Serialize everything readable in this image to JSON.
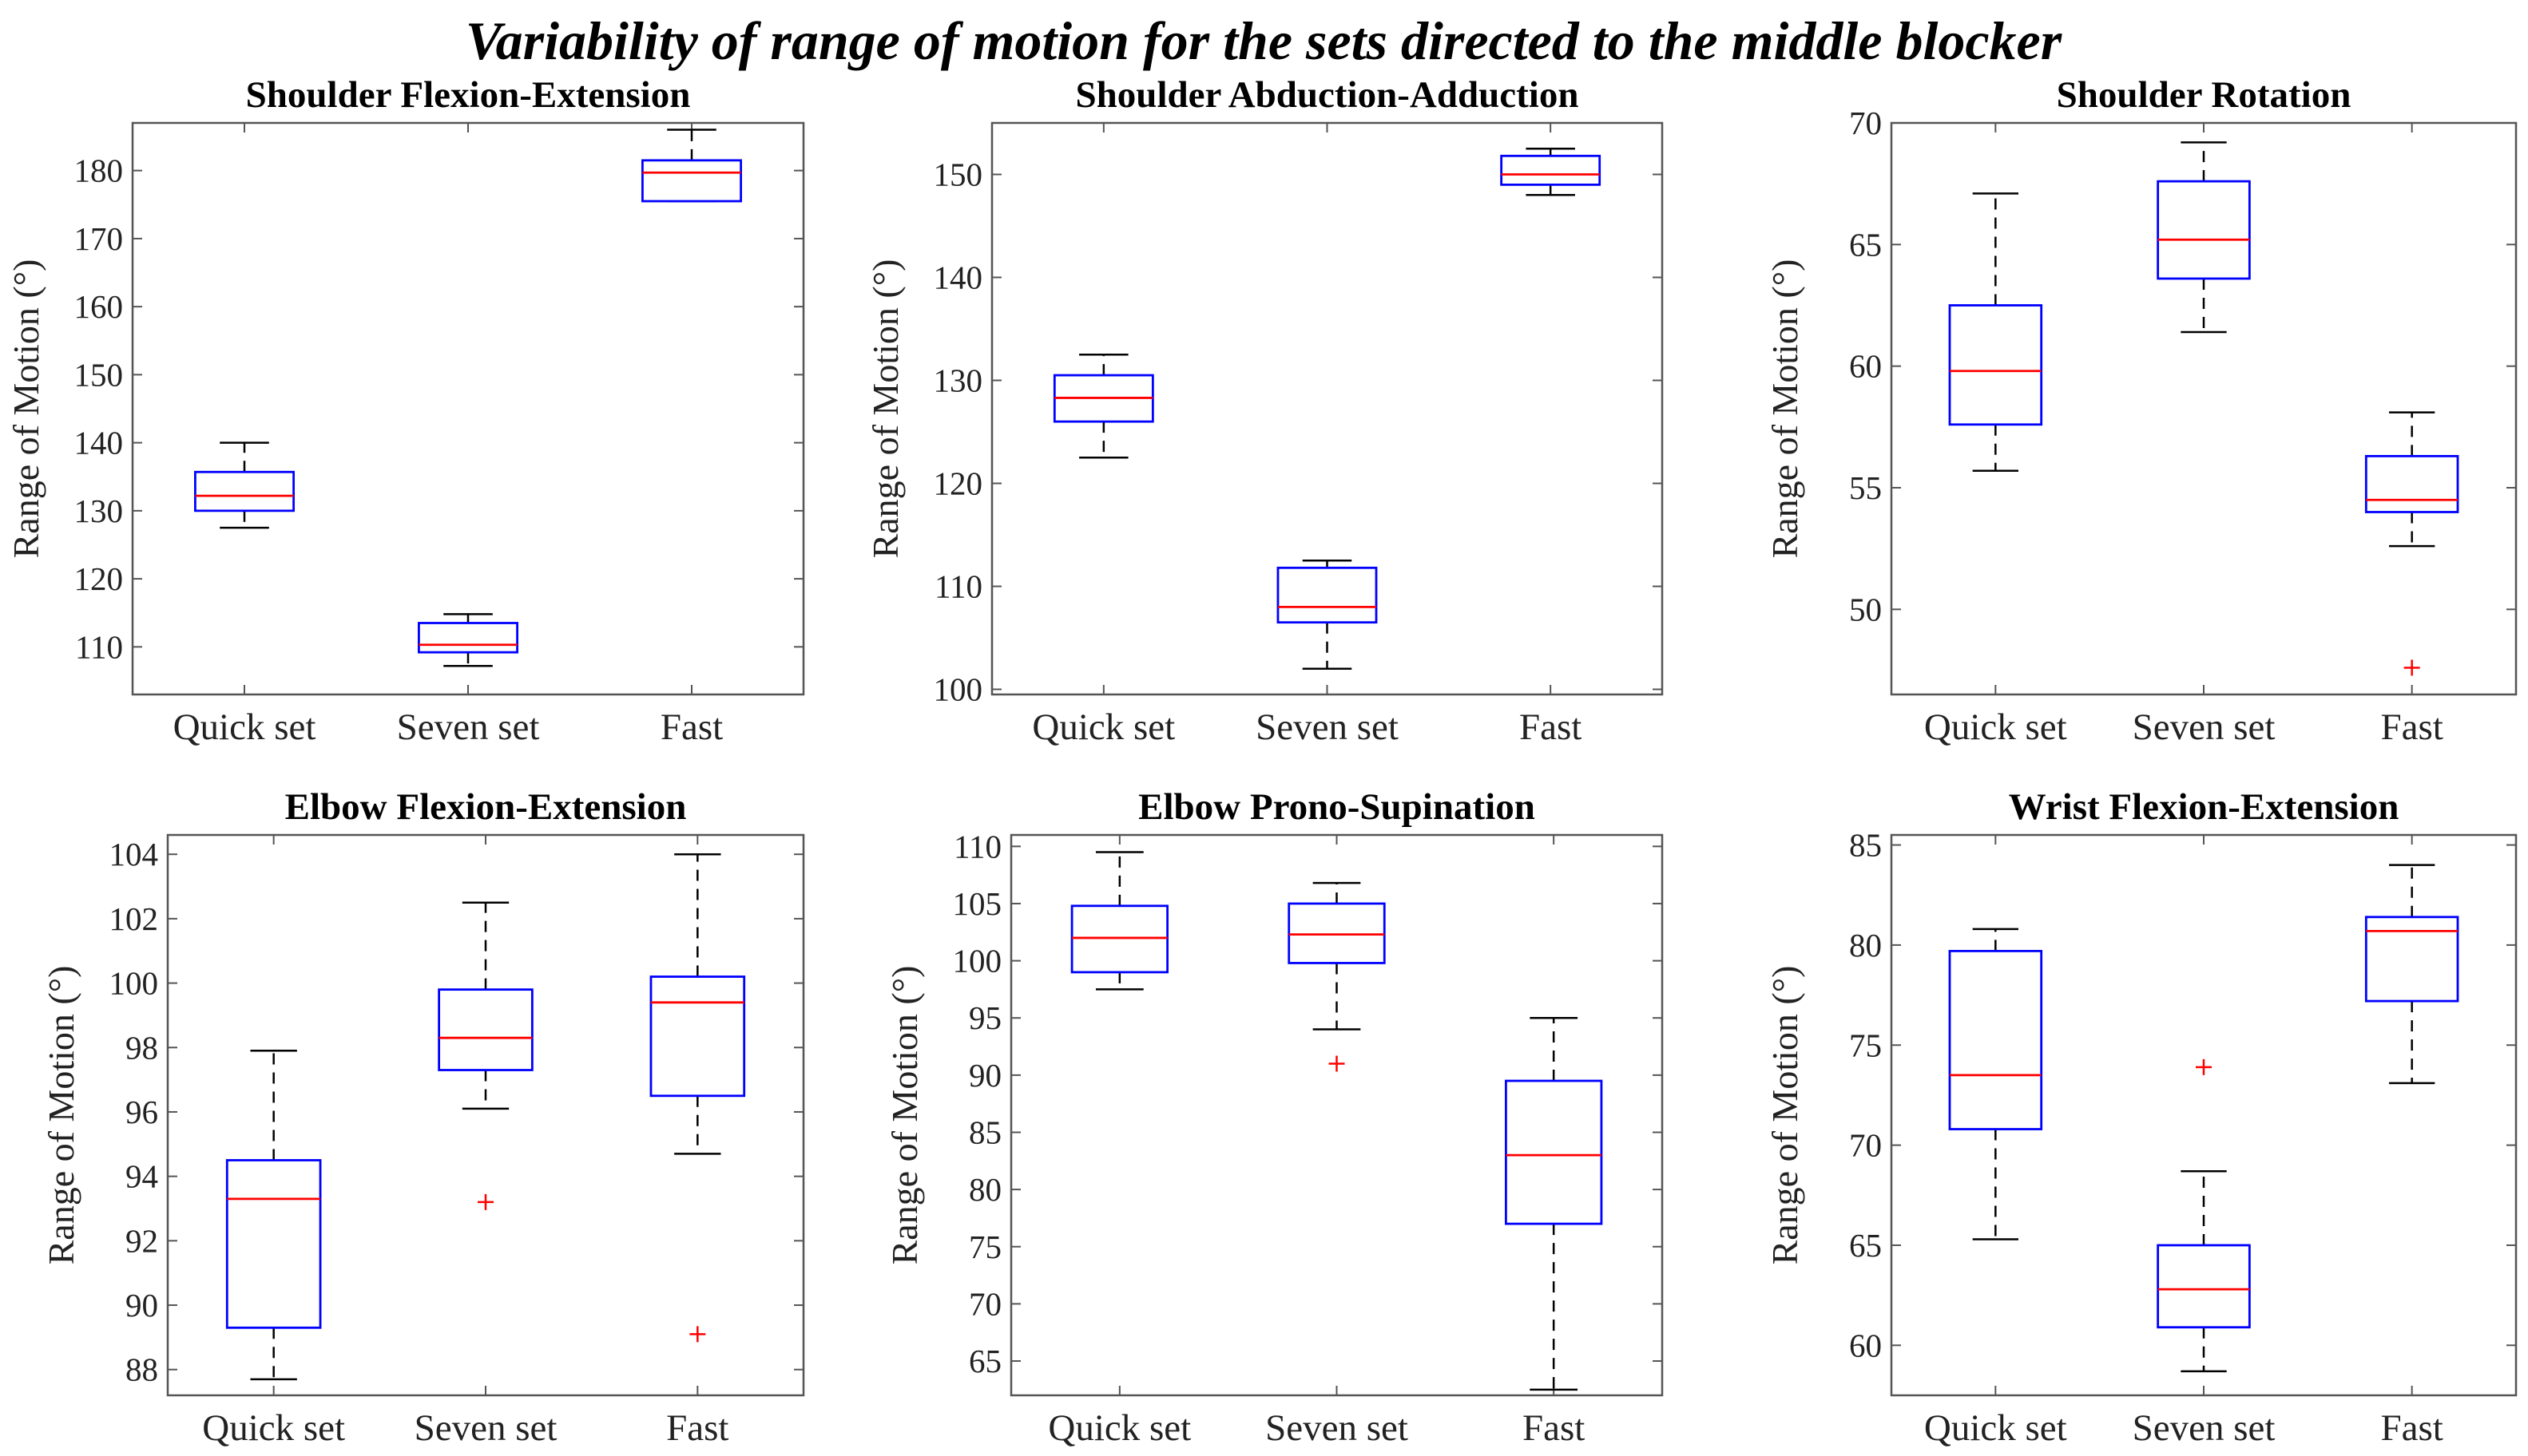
{
  "figure": {
    "title": "Variability of range of motion for the sets directed to the middle blocker"
  },
  "colors": {
    "box": "#0000ff",
    "median": "#ff0000",
    "whisker": "#000000",
    "outlier": "#ff0000",
    "axes": "#555555"
  },
  "chart_data": [
    {
      "type": "box",
      "title": "Shoulder Flexion-Extension",
      "ylabel": "Range of Motion (°)",
      "categories": [
        "Quick set",
        "Seven set",
        "Fast"
      ],
      "ylim": [
        103,
        187
      ],
      "yticks": [
        110,
        120,
        130,
        140,
        150,
        160,
        170,
        180
      ],
      "boxes": [
        {
          "min": 127.5,
          "q1": 130,
          "median": 132.2,
          "q3": 135.7,
          "max": 140,
          "outliers": []
        },
        {
          "min": 107.2,
          "q1": 109.2,
          "median": 110.3,
          "q3": 113.5,
          "max": 114.8,
          "outliers": []
        },
        {
          "min": 175.5,
          "q1": 175.5,
          "median": 179.7,
          "q3": 181.5,
          "max": 186,
          "outliers": []
        }
      ]
    },
    {
      "type": "box",
      "title": "Shoulder Abduction-Adduction",
      "ylabel": "Range of Motion (°)",
      "categories": [
        "Quick set",
        "Seven set",
        "Fast"
      ],
      "ylim": [
        99.5,
        155
      ],
      "yticks": [
        100,
        110,
        120,
        130,
        140,
        150
      ],
      "boxes": [
        {
          "min": 122.5,
          "q1": 126,
          "median": 128.3,
          "q3": 130.5,
          "max": 132.5,
          "outliers": []
        },
        {
          "min": 102,
          "q1": 106.5,
          "median": 108,
          "q3": 111.8,
          "max": 112.5,
          "outliers": []
        },
        {
          "min": 148,
          "q1": 149,
          "median": 150,
          "q3": 151.8,
          "max": 152.5,
          "outliers": []
        }
      ]
    },
    {
      "type": "box",
      "title": "Shoulder Rotation",
      "ylabel": "Range of Motion (°)",
      "categories": [
        "Quick set",
        "Seven set",
        "Fast"
      ],
      "ylim": [
        46.5,
        70
      ],
      "yticks": [
        50,
        55,
        60,
        65,
        70
      ],
      "boxes": [
        {
          "min": 55.7,
          "q1": 57.6,
          "median": 59.8,
          "q3": 62.5,
          "max": 67.1,
          "outliers": []
        },
        {
          "min": 61.4,
          "q1": 63.6,
          "median": 65.2,
          "q3": 67.6,
          "max": 69.2,
          "outliers": []
        },
        {
          "min": 52.6,
          "q1": 54,
          "median": 54.5,
          "q3": 56.3,
          "max": 58.1,
          "outliers": [
            47.6
          ]
        }
      ]
    },
    {
      "type": "box",
      "title": "Elbow Flexion-Extension",
      "ylabel": "Range of Motion (°)",
      "categories": [
        "Quick set",
        "Seven set",
        "Fast"
      ],
      "ylim": [
        87.2,
        104.6
      ],
      "yticks": [
        88,
        90,
        92,
        94,
        96,
        98,
        100,
        102,
        104
      ],
      "boxes": [
        {
          "min": 87.7,
          "q1": 89.3,
          "median": 93.3,
          "q3": 94.5,
          "max": 97.9,
          "outliers": []
        },
        {
          "min": 96.1,
          "q1": 97.3,
          "median": 98.3,
          "q3": 99.8,
          "max": 102.5,
          "outliers": [
            93.2
          ]
        },
        {
          "min": 94.7,
          "q1": 96.5,
          "median": 99.4,
          "q3": 100.2,
          "max": 104,
          "outliers": [
            89.1
          ]
        }
      ]
    },
    {
      "type": "box",
      "title": "Elbow Prono-Supination",
      "ylabel": "Range of Motion (°)",
      "categories": [
        "Quick set",
        "Seven set",
        "Fast"
      ],
      "ylim": [
        62,
        111
      ],
      "yticks": [
        65,
        70,
        75,
        80,
        85,
        90,
        95,
        100,
        105,
        110
      ],
      "boxes": [
        {
          "min": 97.5,
          "q1": 99,
          "median": 102,
          "q3": 104.8,
          "max": 109.5,
          "outliers": []
        },
        {
          "min": 94,
          "q1": 99.8,
          "median": 102.3,
          "q3": 105,
          "max": 106.8,
          "outliers": [
            91
          ]
        },
        {
          "min": 62.5,
          "q1": 77,
          "median": 83,
          "q3": 89.5,
          "max": 95,
          "outliers": []
        }
      ]
    },
    {
      "type": "box",
      "title": "Wrist Flexion-Extension",
      "ylabel": "Range of Motion (°)",
      "categories": [
        "Quick set",
        "Seven set",
        "Fast"
      ],
      "ylim": [
        57.5,
        85.5
      ],
      "yticks": [
        60,
        65,
        70,
        75,
        80,
        85
      ],
      "boxes": [
        {
          "min": 65.3,
          "q1": 70.8,
          "median": 73.5,
          "q3": 79.7,
          "max": 80.8,
          "outliers": []
        },
        {
          "min": 58.7,
          "q1": 60.9,
          "median": 62.8,
          "q3": 65,
          "max": 68.7,
          "outliers": [
            73.9
          ]
        },
        {
          "min": 73.1,
          "q1": 77.2,
          "median": 80.7,
          "q3": 81.4,
          "max": 84,
          "outliers": []
        }
      ]
    }
  ]
}
